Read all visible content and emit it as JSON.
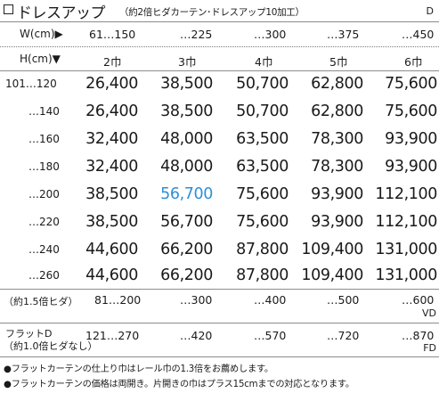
{
  "title": {
    "main": "ドレスアップ",
    "sub": "（約2倍ヒダカーテン･ドレスアップ10加工）",
    "code": "D"
  },
  "header": {
    "width_label": "W(cm)▶",
    "width_values": [
      "61…150",
      "…225",
      "…300",
      "…375",
      "…450"
    ],
    "height_label": "H(cm)▼",
    "panel_values": [
      "2巾",
      "3巾",
      "4巾",
      "5巾",
      "6巾"
    ]
  },
  "rows": [
    {
      "label": "101…120",
      "prices": [
        "26,400",
        "38,500",
        "50,700",
        "62,800",
        "75,600"
      ]
    },
    {
      "label": "…140",
      "prices": [
        "26,400",
        "38,500",
        "50,700",
        "62,800",
        "75,600"
      ]
    },
    {
      "label": "…160",
      "prices": [
        "32,400",
        "48,000",
        "63,500",
        "78,300",
        "93,900"
      ]
    },
    {
      "label": "…180",
      "prices": [
        "32,400",
        "48,000",
        "63,500",
        "78,300",
        "93,900"
      ]
    },
    {
      "label": "…200",
      "prices": [
        "38,500",
        "56,700",
        "75,600",
        "93,900",
        "112,100"
      ]
    },
    {
      "label": "…220",
      "prices": [
        "38,500",
        "56,700",
        "75,600",
        "93,900",
        "112,100"
      ]
    },
    {
      "label": "…240",
      "prices": [
        "44,600",
        "66,200",
        "87,800",
        "109,400",
        "131,000"
      ]
    },
    {
      "label": "…260",
      "prices": [
        "44,600",
        "66,200",
        "87,800",
        "109,400",
        "131,000"
      ]
    }
  ],
  "highlight": {
    "row": 4,
    "col": 1,
    "color": "#2e8fd6"
  },
  "vd_row": {
    "label": "（約1.5倍ヒダ）",
    "values": [
      "81…200",
      "…300",
      "…400",
      "…500",
      "…600"
    ],
    "code": "VD"
  },
  "fd_row": {
    "label1": "フラットD",
    "label2": "（約1.0倍ヒダなし）",
    "values": [
      "121…270",
      "…420",
      "…570",
      "…720",
      "…870"
    ],
    "code": "FD"
  },
  "notes": [
    "●フラットカーテンの仕上り巾はレール巾の1.3倍をお薦めします。",
    "●フラットカーテンの価格は両開き。片開きの巾はプラス15cmまでの対応となります。"
  ]
}
